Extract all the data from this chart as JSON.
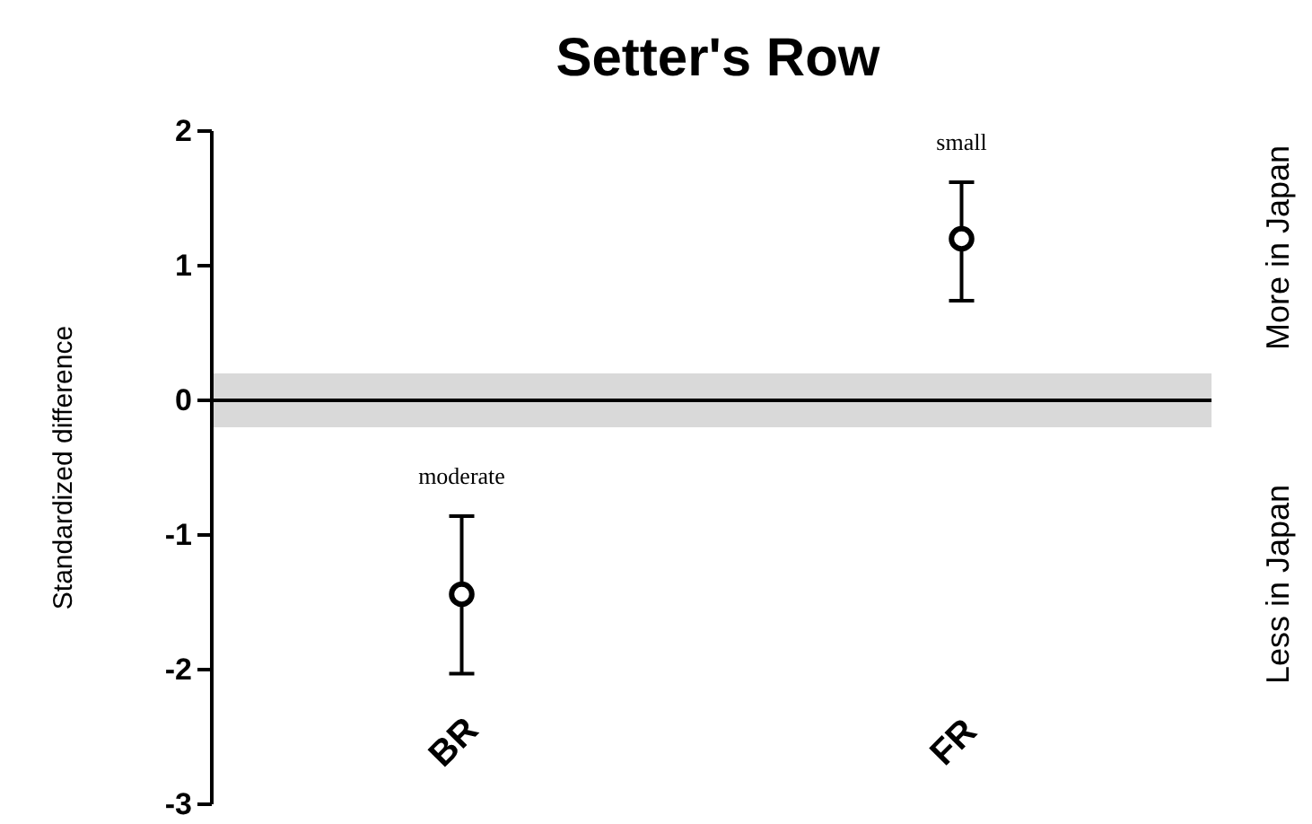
{
  "chart_data": {
    "type": "scatter",
    "title": "Setter's Row",
    "ylabel": "Standardized difference",
    "categories": [
      "BR",
      "FR"
    ],
    "values": [
      -1.44,
      1.2
    ],
    "errors": [
      [
        -2.03,
        -0.86
      ],
      [
        0.74,
        1.62
      ]
    ],
    "color": "#000000",
    "marker": "circle",
    "ylim": [
      -3,
      2
    ],
    "yticks": [
      -3,
      -2,
      -1,
      0,
      1,
      2
    ],
    "ref_lines": [
      {
        "axis": "y",
        "value": 0,
        "color": "#000000"
      }
    ],
    "bands": [
      {
        "axis": "y",
        "from": -0.2,
        "to": 0.2,
        "color": "#d9d9d9"
      }
    ],
    "annotations": [
      "More in Japan",
      "Less in Japan",
      {
        "text": "moderate",
        "x": "BR",
        "y": -0.86
      },
      {
        "text": "small",
        "x": "FR",
        "y": 1.62
      }
    ],
    "grid": false
  }
}
